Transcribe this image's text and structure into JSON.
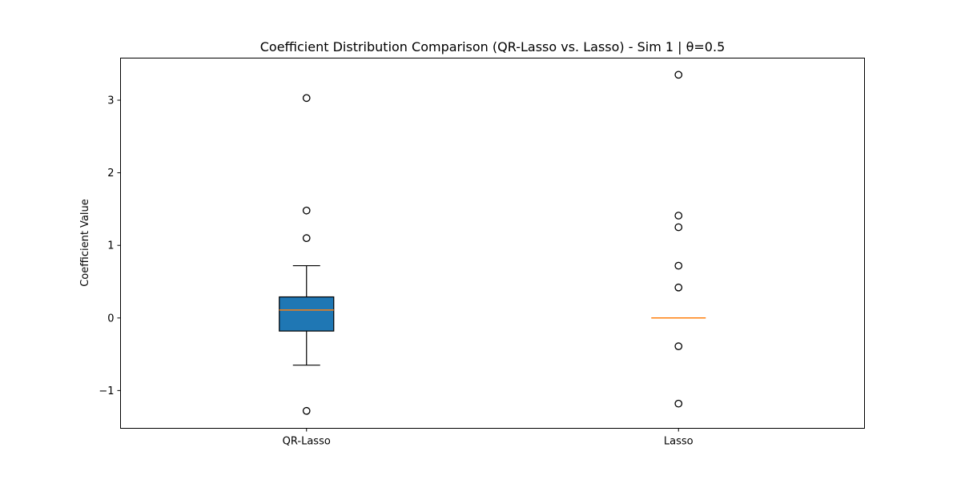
{
  "chart_data": {
    "type": "box",
    "title": "Coefficient Distribution Comparison (QR-Lasso vs. Lasso) - Sim 1 | θ=0.5",
    "xlabel": "",
    "ylabel": "Coefficient Value",
    "ylim": [
      -1.52,
      3.58
    ],
    "yticks": [
      -1,
      0,
      1,
      2,
      3
    ],
    "ytick_labels": [
      "−1",
      "0",
      "1",
      "2",
      "3"
    ],
    "grid": false,
    "categories": [
      "QR-Lasso",
      "Lasso"
    ],
    "boxes": [
      {
        "name": "QR-Lasso",
        "whisker_low": -0.65,
        "q1": -0.18,
        "median": 0.11,
        "q3": 0.29,
        "whisker_high": 0.72,
        "outliers": [
          3.03,
          1.48,
          1.1,
          -1.28
        ],
        "fill": "#1f77b4"
      },
      {
        "name": "Lasso",
        "whisker_low": 0.0,
        "q1": 0.0,
        "median": 0.0,
        "q3": 0.0,
        "whisker_high": 0.0,
        "outliers": [
          3.35,
          1.41,
          1.25,
          0.72,
          0.42,
          -0.39,
          -1.18
        ],
        "fill": "#1f77b4"
      }
    ],
    "colors": {
      "box_fill": "#1f77b4",
      "median": "#ff7f0e",
      "edge": "#000000"
    }
  }
}
